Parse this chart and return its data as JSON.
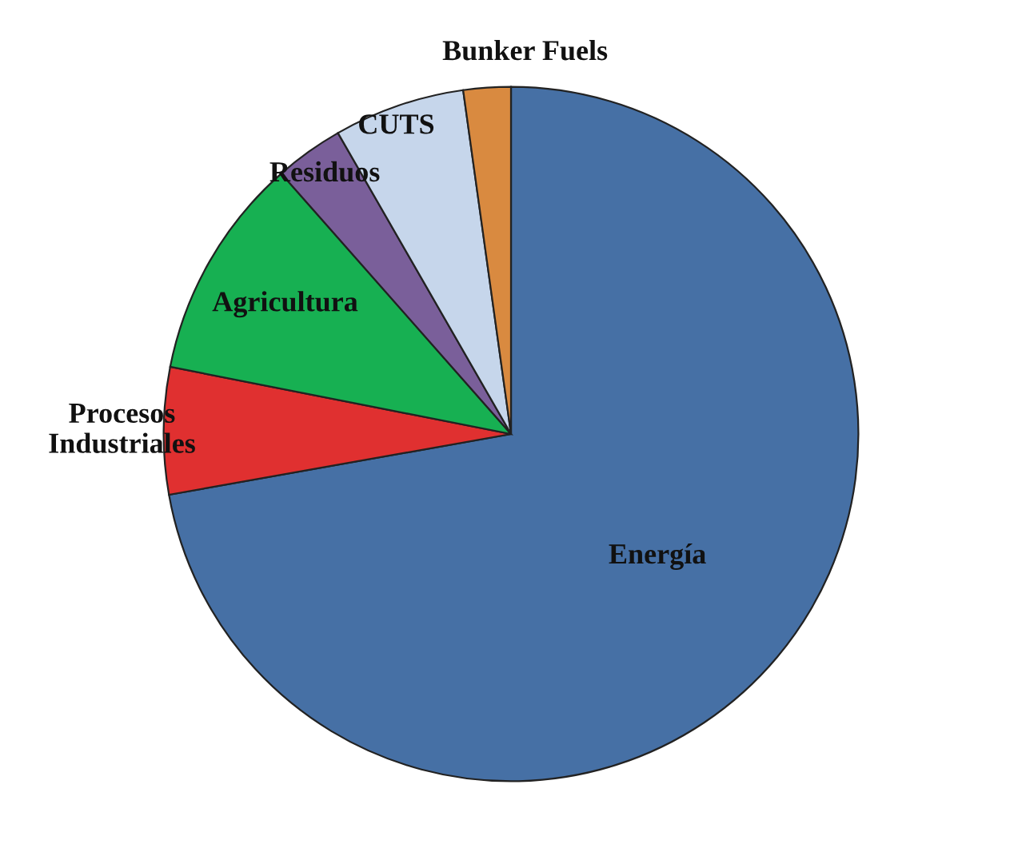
{
  "chart_data": {
    "type": "pie",
    "categories": [
      "Energía",
      "Procesos\nIndustriales",
      "Agricultura",
      "Residuos",
      "CUTS",
      "Bunker Fuels"
    ],
    "values": [
      72.2,
      5.9,
      10.4,
      3.2,
      6.1,
      2.2
    ],
    "colors": [
      "#4670a5",
      "#e03030",
      "#17b052",
      "#7a5f9a",
      "#c6d6eb",
      "#d98a40"
    ]
  }
}
